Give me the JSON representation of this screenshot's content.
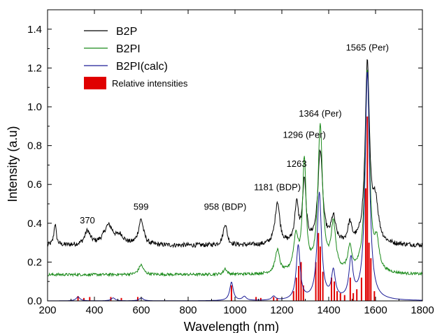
{
  "chart_data": {
    "type": "line",
    "xlabel": "Wavelength (nm)",
    "ylabel": "Intensity (a.u)",
    "xlim": [
      200,
      1800
    ],
    "ylim": [
      0.0,
      1.5
    ],
    "xticks": [
      200,
      400,
      600,
      800,
      1000,
      1200,
      1400,
      1600,
      1800
    ],
    "yticks": [
      0.0,
      0.2,
      0.4,
      0.6,
      0.8,
      1.0,
      1.2,
      1.4
    ],
    "xtick_labels": [
      "200",
      "400",
      "600",
      "800",
      "1000",
      "1200",
      "1400",
      "1600",
      "1800"
    ],
    "ytick_labels": [
      "0.0",
      "0.2",
      "0.4",
      "0.6",
      "0.8",
      "1.0",
      "1.2",
      "1.4"
    ],
    "legend_position": "top-left",
    "series": [
      {
        "name": "B2P",
        "color": "#000000",
        "baseline": 0.285,
        "noise": 0.012,
        "peaks": [
          [
            232,
            0.11,
            6
          ],
          [
            370,
            0.07,
            14
          ],
          [
            460,
            0.1,
            25
          ],
          [
            510,
            0.04,
            18
          ],
          [
            599,
            0.13,
            13
          ],
          [
            958,
            0.11,
            10
          ],
          [
            1181,
            0.22,
            12
          ],
          [
            1263,
            0.2,
            10
          ],
          [
            1296,
            0.32,
            9
          ],
          [
            1364,
            0.48,
            12
          ],
          [
            1420,
            0.13,
            12
          ],
          [
            1490,
            0.1,
            10
          ],
          [
            1565,
            0.93,
            11
          ],
          [
            1600,
            0.2,
            14
          ]
        ]
      },
      {
        "name": "B2PI",
        "color": "#1a8a1a",
        "baseline": 0.135,
        "noise": 0.007,
        "peaks": [
          [
            599,
            0.05,
            12
          ],
          [
            958,
            0.03,
            8
          ],
          [
            1181,
            0.12,
            11
          ],
          [
            1260,
            0.18,
            12
          ],
          [
            1296,
            0.57,
            9
          ],
          [
            1364,
            0.75,
            12
          ],
          [
            1420,
            0.24,
            12
          ],
          [
            1490,
            0.12,
            10
          ],
          [
            1565,
            1.04,
            11
          ],
          [
            1605,
            0.14,
            12
          ]
        ]
      },
      {
        "name": "B2PI(calc)",
        "color": "#1c1c96",
        "baseline": 0.0,
        "noise": 0.0,
        "peaks": [
          [
            330,
            0.02,
            10
          ],
          [
            480,
            0.015,
            10
          ],
          [
            600,
            0.015,
            10
          ],
          [
            985,
            0.095,
            9
          ],
          [
            1040,
            0.02,
            10
          ],
          [
            1165,
            0.02,
            10
          ],
          [
            1270,
            0.28,
            10
          ],
          [
            1360,
            0.55,
            11
          ],
          [
            1420,
            0.14,
            10
          ],
          [
            1495,
            0.2,
            10
          ],
          [
            1565,
            1.18,
            11
          ]
        ]
      },
      {
        "name": "Relative intensities",
        "color": "#e00000",
        "kind": "sticks",
        "sticks": [
          [
            330,
            0.025
          ],
          [
            355,
            0.015
          ],
          [
            380,
            0.02
          ],
          [
            470,
            0.02
          ],
          [
            515,
            0.015
          ],
          [
            585,
            0.02
          ],
          [
            985,
            0.08
          ],
          [
            1090,
            0.02
          ],
          [
            1110,
            0.015
          ],
          [
            1165,
            0.02
          ],
          [
            1180,
            0.015
          ],
          [
            1250,
            0.05
          ],
          [
            1262,
            0.12
          ],
          [
            1272,
            0.18
          ],
          [
            1282,
            0.2
          ],
          [
            1292,
            0.08
          ],
          [
            1345,
            0.2
          ],
          [
            1356,
            0.35
          ],
          [
            1364,
            0.28
          ],
          [
            1375,
            0.15
          ],
          [
            1412,
            0.12
          ],
          [
            1424,
            0.1
          ],
          [
            1436,
            0.05
          ],
          [
            1450,
            0.04
          ],
          [
            1468,
            0.03
          ],
          [
            1492,
            0.12
          ],
          [
            1505,
            0.04
          ],
          [
            1520,
            0.06
          ],
          [
            1540,
            0.12
          ],
          [
            1558,
            0.58
          ],
          [
            1565,
            0.95
          ],
          [
            1572,
            0.3
          ],
          [
            1580,
            0.22
          ],
          [
            1595,
            0.05
          ]
        ]
      }
    ],
    "annotations": [
      {
        "text": "370",
        "x": 370,
        "y": 0.4
      },
      {
        "text": "599",
        "x": 599,
        "y": 0.47
      },
      {
        "text": "958 (BDP)",
        "x": 958,
        "y": 0.47
      },
      {
        "text": "1181 (BDP)",
        "x": 1181,
        "y": 0.57
      },
      {
        "text": "1263",
        "x": 1263,
        "y": 0.69
      },
      {
        "text": "1296 (Per)",
        "x": 1296,
        "y": 0.84
      },
      {
        "text": "1364 (Per)",
        "x": 1364,
        "y": 0.95
      },
      {
        "text": "1565 (Per)",
        "x": 1565,
        "y": 1.29
      }
    ]
  }
}
